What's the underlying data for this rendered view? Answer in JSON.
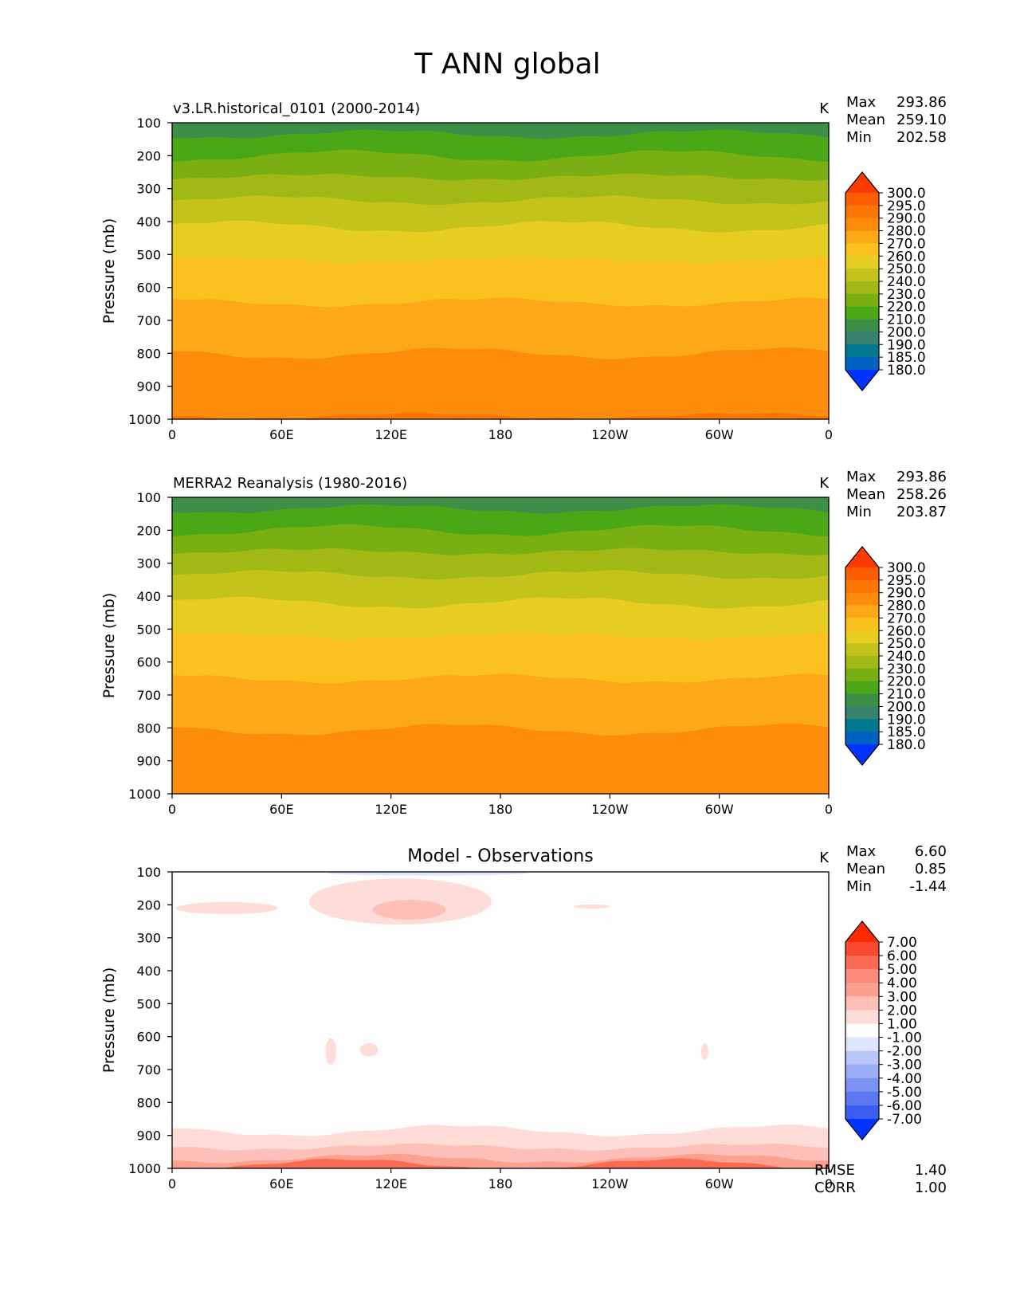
{
  "figure": {
    "title": "T ANN global"
  },
  "chart_data": [
    {
      "type": "heatmap",
      "panel_title": "v3.LR.historical_0101 (2000-2014)",
      "title_align": "left",
      "units": "K",
      "stats": [
        {
          "label": "Max",
          "value": "293.86"
        },
        {
          "label": "Mean",
          "value": "259.10"
        },
        {
          "label": "Min",
          "value": "202.58"
        }
      ],
      "ylabel": "Pressure (mb)",
      "xlabel": "",
      "x_ticks": [
        "0",
        "60E",
        "120E",
        "180",
        "120W",
        "60W",
        "0"
      ],
      "y_ticks": [
        "100",
        "200",
        "300",
        "400",
        "500",
        "600",
        "700",
        "800",
        "900",
        "1000"
      ],
      "xlim": [
        0,
        360
      ],
      "ylim": [
        100,
        1000
      ],
      "levels": [
        {
          "top_mb": 100,
          "value": 205,
          "color": "#3d8f48"
        },
        {
          "top_mb": 135,
          "value": 215,
          "color": "#4aa817"
        },
        {
          "top_mb": 200,
          "value": 225,
          "color": "#7aaf14"
        },
        {
          "top_mb": 265,
          "value": 235,
          "color": "#a1b815"
        },
        {
          "top_mb": 335,
          "value": 245,
          "color": "#c4c31c"
        },
        {
          "top_mb": 415,
          "value": 255,
          "color": "#e7cd22"
        },
        {
          "top_mb": 515,
          "value": 265,
          "color": "#fbc21f"
        },
        {
          "top_mb": 645,
          "value": 275,
          "color": "#fda917"
        },
        {
          "top_mb": 800,
          "value": 285,
          "color": "#fd8c0a"
        },
        {
          "top_mb": 990,
          "value": 292,
          "color": "#fd7600"
        }
      ],
      "colorbar": {
        "labels": [
          "300.0",
          "295.0",
          "290.0",
          "280.0",
          "270.0",
          "260.0",
          "250.0",
          "240.0",
          "230.0",
          "220.0",
          "210.0",
          "200.0",
          "190.0",
          "185.0",
          "180.0"
        ],
        "colors": [
          "#fd3b00",
          "#fd5e00",
          "#fd7600",
          "#fd8c0a",
          "#fda917",
          "#fbc21f",
          "#e7cd22",
          "#c4c31c",
          "#a1b815",
          "#7aaf14",
          "#4aa817",
          "#3d8f48",
          "#37826f",
          "#007890",
          "#0061c2",
          "#0033ff"
        ]
      }
    },
    {
      "type": "heatmap",
      "panel_title": "MERRA2 Reanalysis (1980-2016)",
      "title_align": "left",
      "units": "K",
      "stats": [
        {
          "label": "Max",
          "value": "293.86"
        },
        {
          "label": "Mean",
          "value": "258.26"
        },
        {
          "label": "Min",
          "value": "203.87"
        }
      ],
      "ylabel": "Pressure (mb)",
      "xlabel": "",
      "x_ticks": [
        "0",
        "60E",
        "120E",
        "180",
        "120W",
        "60W",
        "0"
      ],
      "y_ticks": [
        "100",
        "200",
        "300",
        "400",
        "500",
        "600",
        "700",
        "800",
        "900",
        "1000"
      ],
      "xlim": [
        0,
        360
      ],
      "ylim": [
        100,
        1000
      ],
      "levels": [
        {
          "top_mb": 100,
          "value": 205,
          "color": "#3d8f48"
        },
        {
          "top_mb": 135,
          "value": 215,
          "color": "#4aa817"
        },
        {
          "top_mb": 200,
          "value": 225,
          "color": "#7aaf14"
        },
        {
          "top_mb": 265,
          "value": 235,
          "color": "#a1b815"
        },
        {
          "top_mb": 335,
          "value": 245,
          "color": "#c4c31c"
        },
        {
          "top_mb": 420,
          "value": 255,
          "color": "#e7cd22"
        },
        {
          "top_mb": 520,
          "value": 265,
          "color": "#fbc21f"
        },
        {
          "top_mb": 650,
          "value": 275,
          "color": "#fda917"
        },
        {
          "top_mb": 805,
          "value": 285,
          "color": "#fd8c0a"
        }
      ],
      "colorbar": {
        "labels": [
          "300.0",
          "295.0",
          "290.0",
          "280.0",
          "270.0",
          "260.0",
          "250.0",
          "240.0",
          "230.0",
          "220.0",
          "210.0",
          "200.0",
          "190.0",
          "185.0",
          "180.0"
        ],
        "colors": [
          "#fd3b00",
          "#fd5e00",
          "#fd7600",
          "#fd8c0a",
          "#fda917",
          "#fbc21f",
          "#e7cd22",
          "#c4c31c",
          "#a1b815",
          "#7aaf14",
          "#4aa817",
          "#3d8f48",
          "#37826f",
          "#007890",
          "#0061c2",
          "#0033ff"
        ]
      }
    },
    {
      "type": "heatmap",
      "panel_title": "Model - Observations",
      "title_align": "center",
      "units": "K",
      "stats": [
        {
          "label": "Max",
          "value": "6.60"
        },
        {
          "label": "Mean",
          "value": "0.85"
        },
        {
          "label": "Min",
          "value": "-1.44"
        }
      ],
      "extra_stats": [
        {
          "label": "RMSE",
          "value": "1.40"
        },
        {
          "label": "CORR",
          "value": "1.00"
        }
      ],
      "ylabel": "Pressure (mb)",
      "xlabel": "",
      "x_ticks": [
        "0",
        "60E",
        "120E",
        "180",
        "120W",
        "60W",
        "0"
      ],
      "y_ticks": [
        "100",
        "200",
        "300",
        "400",
        "500",
        "600",
        "700",
        "800",
        "900",
        "1000"
      ],
      "xlim": [
        0,
        360
      ],
      "ylim": [
        100,
        1000
      ],
      "background_color": "#fdfdfd",
      "features": [
        {
          "kind": "blob",
          "lon": 125,
          "p": 190,
          "dlon": 50,
          "dp": 70,
          "value": 1.5,
          "color": "#fedcd8"
        },
        {
          "kind": "blob",
          "lon": 30,
          "p": 210,
          "dlon": 28,
          "dp": 18,
          "value": 1.5,
          "color": "#fedcd8"
        },
        {
          "kind": "blob",
          "lon": 130,
          "p": 215,
          "dlon": 20,
          "dp": 30,
          "value": 2.5,
          "color": "#fdbfb8"
        },
        {
          "kind": "blob",
          "lon": 230,
          "p": 205,
          "dlon": 10,
          "dp": 6,
          "value": 1.5,
          "color": "#fedcd8"
        },
        {
          "kind": "blob",
          "lon": 140,
          "p": 103,
          "dlon": 55,
          "dp": 8,
          "value": -1.2,
          "color": "#dde6fb"
        },
        {
          "kind": "blob",
          "lon": 87,
          "p": 645,
          "dlon": 3,
          "dp": 40,
          "value": 1.5,
          "color": "#fedcd8"
        },
        {
          "kind": "blob",
          "lon": 108,
          "p": 640,
          "dlon": 5,
          "dp": 20,
          "value": 1.5,
          "color": "#fedcd8"
        },
        {
          "kind": "blob",
          "lon": 292,
          "p": 645,
          "dlon": 2,
          "dp": 25,
          "value": 1.5,
          "color": "#fedcd8"
        },
        {
          "kind": "band",
          "p_top": 885,
          "value": 1.5,
          "color": "#fedcd8"
        },
        {
          "kind": "band",
          "p_top": 935,
          "value": 2.5,
          "color": "#fdbfb8"
        },
        {
          "kind": "band",
          "p_top": 970,
          "value": 3.5,
          "color": "#fca08f"
        },
        {
          "kind": "band",
          "p_top": 988,
          "value": 5.0,
          "color": "#fb6b54"
        }
      ],
      "colorbar": {
        "labels": [
          "7.00",
          "6.00",
          "5.00",
          "4.00",
          "3.00",
          "2.00",
          "1.00",
          "-1.00",
          "-2.00",
          "-3.00",
          "-4.00",
          "-5.00",
          "-6.00",
          "-7.00"
        ],
        "colors": [
          "#fd2a00",
          "#fc4a30",
          "#fb6b54",
          "#fa8b79",
          "#fca08f",
          "#fdbfb8",
          "#fedcd8",
          "#fdfdfd",
          "#dde6fb",
          "#b9c6f8",
          "#9aadf6",
          "#7c93f4",
          "#5b78f2",
          "#3a5ef2",
          "#0033ff"
        ]
      }
    }
  ]
}
